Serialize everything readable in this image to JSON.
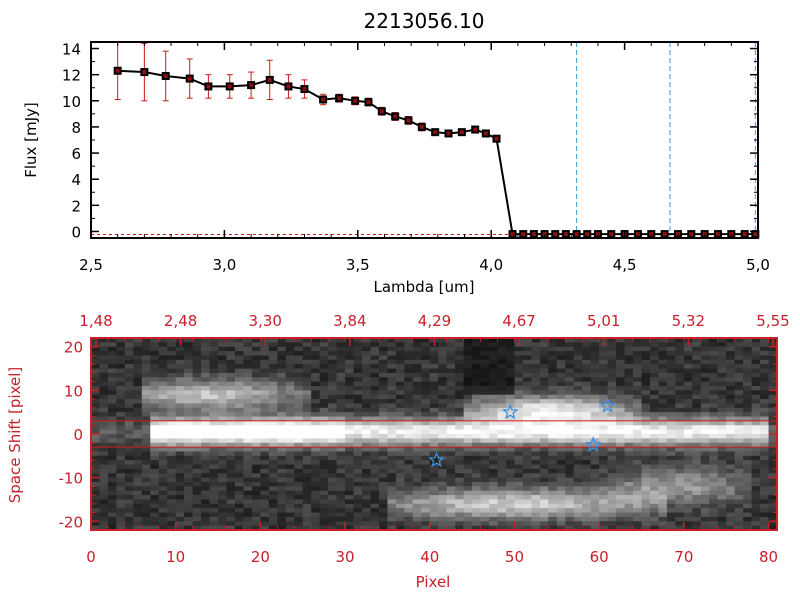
{
  "chart_data": [
    {
      "type": "line",
      "title": "2213056.10",
      "xlabel": "Lambda [um]",
      "ylabel": "Flux [mJy]",
      "xlim": [
        2.5,
        5.0
      ],
      "ylim": [
        -0.5,
        14.5
      ],
      "x_ticks": [
        "2.5",
        "3.0",
        "3.5",
        "4.0",
        "4.5",
        "5.0"
      ],
      "y_ticks": [
        "0",
        "2",
        "4",
        "6",
        "8",
        "10",
        "12",
        "14"
      ],
      "colors": {
        "line": "#000000",
        "error_bars": "#d01818",
        "markers": "#000000",
        "marker_fill": "#8b1010",
        "vlines": "#3b9fd6",
        "zero_line": "#d01818"
      },
      "series": [
        {
          "x": [
            2.6,
            2.7,
            2.78,
            2.87,
            2.94,
            3.02,
            3.1,
            3.17,
            3.24,
            3.3,
            3.37,
            3.43,
            3.49,
            3.54,
            3.59,
            3.64,
            3.69,
            3.74,
            3.79,
            3.84,
            3.89,
            3.94,
            3.98,
            4.02,
            4.08,
            4.12,
            4.16,
            4.2,
            4.24,
            4.28,
            4.32,
            4.36,
            4.4,
            4.45,
            4.5,
            4.55,
            4.6,
            4.65,
            4.7,
            4.75,
            4.8,
            4.85,
            4.9,
            4.95,
            4.99
          ],
          "y": [
            12.3,
            12.2,
            11.9,
            11.7,
            11.1,
            11.1,
            11.2,
            11.6,
            11.1,
            10.9,
            10.1,
            10.2,
            10.0,
            9.9,
            9.2,
            8.8,
            8.5,
            8.0,
            7.6,
            7.5,
            7.6,
            7.8,
            7.5,
            7.1,
            -0.2,
            -0.2,
            -0.2,
            -0.2,
            -0.2,
            -0.2,
            -0.2,
            -0.2,
            -0.2,
            -0.2,
            -0.2,
            -0.2,
            -0.2,
            -0.2,
            -0.2,
            -0.2,
            -0.2,
            -0.2,
            -0.2,
            -0.2,
            -0.2
          ],
          "error": [
            2.2,
            2.2,
            1.9,
            1.5,
            0.9,
            0.9,
            1.0,
            1.5,
            0.9,
            0.7,
            0.4,
            0.3,
            0.3,
            0.3,
            0.3,
            0.3,
            0.3,
            0.3,
            0.2,
            0.2,
            0.2,
            0.2,
            0.2,
            0.2,
            0,
            0,
            0,
            0,
            0,
            0,
            0,
            0,
            0,
            0,
            0,
            0,
            0,
            0,
            0,
            0,
            0,
            0,
            0,
            0,
            0
          ]
        }
      ],
      "vlines": [
        4.32,
        4.67,
        4.99
      ]
    },
    {
      "type": "heatmap",
      "xlabel": "Pixel",
      "ylabel": "Space Shift [pixel]",
      "xlim": [
        0,
        81
      ],
      "ylim": [
        -22,
        22
      ],
      "x_ticks": [
        "0",
        "10",
        "20",
        "30",
        "40",
        "50",
        "60",
        "70",
        "80"
      ],
      "y_ticks": [
        "-20",
        "-10",
        "0",
        "10",
        "20"
      ],
      "top_ticks": [
        "1.48",
        "2.48",
        "3.30",
        "3.84",
        "4.29",
        "4.67",
        "5.01",
        "5.32",
        "5.55"
      ],
      "colors": {
        "axes": "#c8202a",
        "stars": "#3b8fe0",
        "hlines": "#d01818"
      },
      "hlines": [
        3,
        -3
      ],
      "stars": [
        {
          "x": 49.5,
          "y": 5
        },
        {
          "x": 61.0,
          "y": 6.5
        },
        {
          "x": 40.8,
          "y": -6
        },
        {
          "x": 59.3,
          "y": -2.5
        }
      ]
    }
  ]
}
